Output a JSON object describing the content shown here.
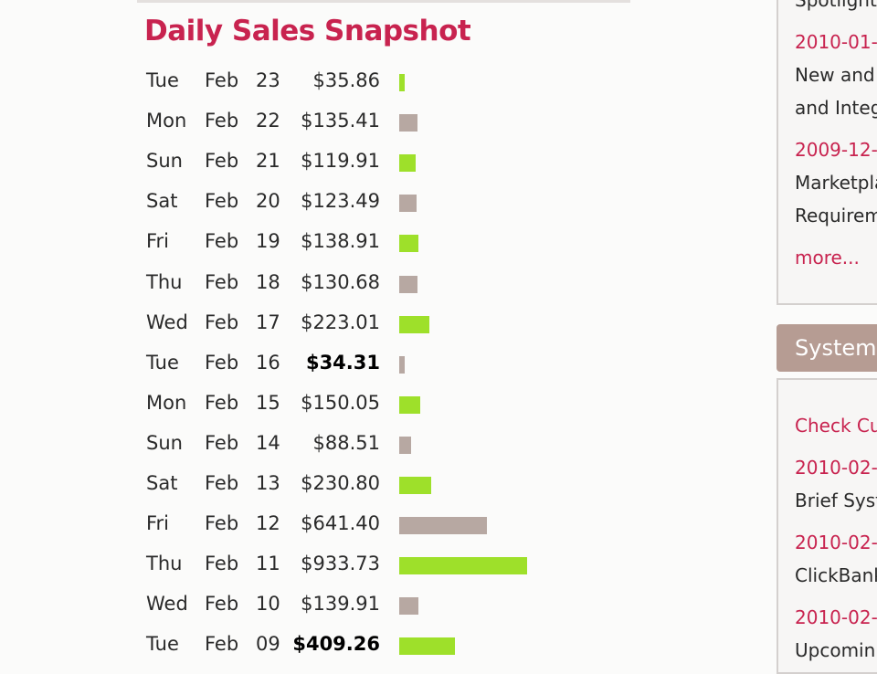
{
  "title": "Daily Sales Snapshot",
  "colors": {
    "title": "#c8234f",
    "bar_a": "#9ee02a",
    "bar_b": "#b7a8a2"
  },
  "rows": [
    {
      "day": "Tue",
      "month": "Feb",
      "date": "23",
      "amount": "$35.86",
      "value": 35.86,
      "bold": false
    },
    {
      "day": "Mon",
      "month": "Feb",
      "date": "22",
      "amount": "$135.41",
      "value": 135.41,
      "bold": false
    },
    {
      "day": "Sun",
      "month": "Feb",
      "date": "21",
      "amount": "$119.91",
      "value": 119.91,
      "bold": false
    },
    {
      "day": "Sat",
      "month": "Feb",
      "date": "20",
      "amount": "$123.49",
      "value": 123.49,
      "bold": false
    },
    {
      "day": "Fri",
      "month": "Feb",
      "date": "19",
      "amount": "$138.91",
      "value": 138.91,
      "bold": false
    },
    {
      "day": "Thu",
      "month": "Feb",
      "date": "18",
      "amount": "$130.68",
      "value": 130.68,
      "bold": false
    },
    {
      "day": "Wed",
      "month": "Feb",
      "date": "17",
      "amount": "$223.01",
      "value": 223.01,
      "bold": false
    },
    {
      "day": "Tue",
      "month": "Feb",
      "date": "16",
      "amount": "$34.31",
      "value": 34.31,
      "bold": true
    },
    {
      "day": "Mon",
      "month": "Feb",
      "date": "15",
      "amount": "$150.05",
      "value": 150.05,
      "bold": false
    },
    {
      "day": "Sun",
      "month": "Feb",
      "date": "14",
      "amount": "$88.51",
      "value": 88.51,
      "bold": false
    },
    {
      "day": "Sat",
      "month": "Feb",
      "date": "13",
      "amount": "$230.80",
      "value": 230.8,
      "bold": false
    },
    {
      "day": "Fri",
      "month": "Feb",
      "date": "12",
      "amount": "$641.40",
      "value": 641.4,
      "bold": false
    },
    {
      "day": "Thu",
      "month": "Feb",
      "date": "11",
      "amount": "$933.73",
      "value": 933.73,
      "bold": false
    },
    {
      "day": "Wed",
      "month": "Feb",
      "date": "10",
      "amount": "$139.91",
      "value": 139.91,
      "bold": false
    },
    {
      "day": "Tue",
      "month": "Feb",
      "date": "09",
      "amount": "$409.26",
      "value": 409.26,
      "bold": true
    }
  ],
  "sidebar": {
    "spotlight": {
      "items": [
        {
          "text": "Spotlight",
          "cls": "dark"
        },
        {
          "text": "2010-01-",
          "cls": "pink"
        },
        {
          "text": "New and",
          "cls": "dark"
        },
        {
          "text": "and Integ",
          "cls": "dark"
        },
        {
          "text": "2009-12-",
          "cls": "pink"
        },
        {
          "text": "Marketpla",
          "cls": "dark"
        },
        {
          "text": "Requirem",
          "cls": "dark"
        },
        {
          "text": "more...",
          "cls": "pink"
        }
      ]
    },
    "system": {
      "header": "System",
      "items": [
        {
          "text": "Check Cu",
          "cls": "pink"
        },
        {
          "text": "2010-02-",
          "cls": "pink"
        },
        {
          "text": "Brief Syst",
          "cls": "dark"
        },
        {
          "text": "2010-02-",
          "cls": "pink"
        },
        {
          "text": "ClickBank",
          "cls": "dark"
        },
        {
          "text": "2010-02-",
          "cls": "pink"
        },
        {
          "text": "Upcomin",
          "cls": "dark"
        }
      ]
    }
  }
}
